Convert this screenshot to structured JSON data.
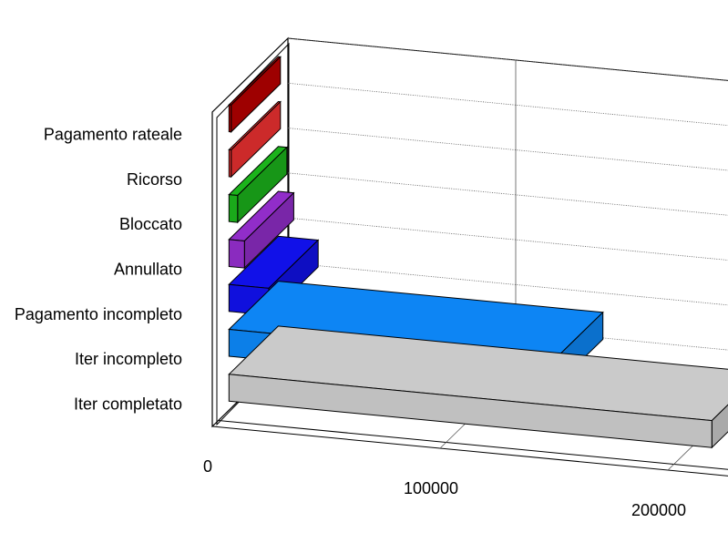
{
  "chart_data": {
    "type": "bar",
    "orientation": "horizontal",
    "style": "3d",
    "title": "",
    "xlabel": "",
    "ylabel": "",
    "categories": [
      "Pagamento rateale",
      "Ricorso",
      "Bloccato",
      "Annullato",
      "Pagamento incompleto",
      "Iter incompleto",
      "Iter completato"
    ],
    "values": [
      200,
      900,
      3800,
      6800,
      17500,
      142500,
      212000
    ],
    "colors": [
      "#b40000",
      "#e83030",
      "#1aaa1a",
      "#8a2bbf",
      "#1010dd",
      "#0c7fe8",
      "#c0c0c0"
    ],
    "xlim": [
      0,
      240000
    ],
    "x_ticks": [
      0,
      100000,
      200000
    ],
    "x_tick_labels": [
      "0",
      "100000",
      "200000"
    ],
    "grid": true,
    "legend": "none"
  }
}
